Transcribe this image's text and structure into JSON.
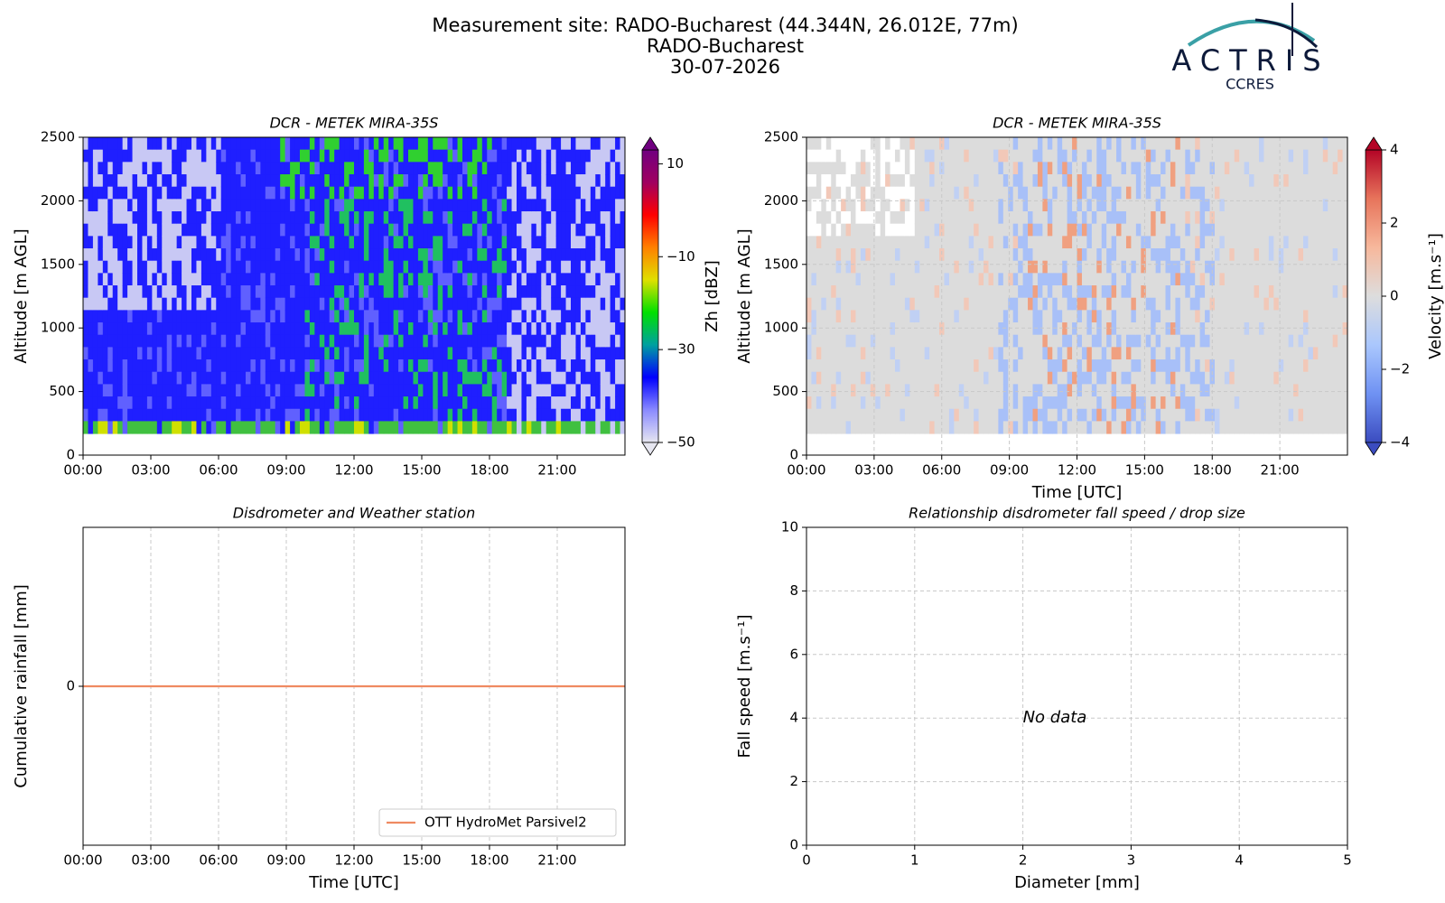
{
  "header": {
    "title": "Measurement site: RADO-Bucharest (44.344N, 26.012E, 77m)",
    "station": "RADO-Bucharest",
    "date": "30-07-2026",
    "logo": "ACTRIS",
    "logo_sub": "CCRES"
  },
  "chart_data": [
    {
      "type": "heatmap",
      "title": "DCR - METEK MIRA-35S",
      "ylabel": "Altitude [m AGL]",
      "xlim": [
        0,
        24
      ],
      "xticks": [
        {
          "value": 0,
          "label": "00:00"
        },
        {
          "value": 3,
          "label": "03:00"
        },
        {
          "value": 6,
          "label": "06:00"
        },
        {
          "value": 9,
          "label": "09:00"
        },
        {
          "value": 12,
          "label": "12:00"
        },
        {
          "value": 15,
          "label": "15:00"
        },
        {
          "value": 18,
          "label": "18:00"
        },
        {
          "value": 21,
          "label": "21:00"
        }
      ],
      "ylim": [
        0,
        2500
      ],
      "yticks": [
        0,
        500,
        1000,
        1500,
        2000,
        2500
      ],
      "grid": false,
      "colorbar": {
        "label": "Zh [dBZ]",
        "clim": [
          -50,
          13
        ],
        "ticks": [
          {
            "value": -50,
            "label": "−50"
          },
          {
            "value": -30,
            "label": "−30"
          },
          {
            "value": -10,
            "label": "−10"
          },
          10
        ],
        "colors": [
          "#e6e6f0",
          "#8a8aff",
          "#0000ff",
          "#00a0a0",
          "#00e000",
          "#e0e000",
          "#ff8000",
          "#ff0000",
          "#a00060",
          "#700080"
        ]
      }
    },
    {
      "type": "heatmap",
      "title": "DCR - METEK MIRA-35S",
      "ylabel": "Altitude [m AGL]",
      "xlabel": "Time [UTC]",
      "xlim": [
        0,
        24
      ],
      "xticks": [
        {
          "value": 0,
          "label": "00:00"
        },
        {
          "value": 3,
          "label": "03:00"
        },
        {
          "value": 6,
          "label": "06:00"
        },
        {
          "value": 9,
          "label": "09:00"
        },
        {
          "value": 12,
          "label": "12:00"
        },
        {
          "value": 15,
          "label": "15:00"
        },
        {
          "value": 18,
          "label": "18:00"
        },
        {
          "value": 21,
          "label": "21:00"
        }
      ],
      "ylim": [
        0,
        2500
      ],
      "yticks": [
        0,
        500,
        1000,
        1500,
        2000,
        2500
      ],
      "grid": true,
      "colorbar": {
        "label": "Velocity [m.s⁻¹]",
        "clim": [
          -4,
          4
        ],
        "ticks": [
          {
            "value": -4,
            "label": "−4"
          },
          {
            "value": -2,
            "label": "−2"
          },
          0,
          2,
          4
        ],
        "colors": [
          "#3b4cc0",
          "#6f92f3",
          "#aac7fd",
          "#dddddd",
          "#f7b89c",
          "#e7745b",
          "#b40426"
        ]
      }
    },
    {
      "type": "line",
      "title": "Disdrometer and Weather station",
      "ylabel": "Cumulative rainfall [mm]",
      "xlabel": "Time [UTC]",
      "xlim": [
        0,
        24
      ],
      "xticks": [
        {
          "value": 0,
          "label": "00:00"
        },
        {
          "value": 3,
          "label": "03:00"
        },
        {
          "value": 6,
          "label": "06:00"
        },
        {
          "value": 9,
          "label": "09:00"
        },
        {
          "value": 12,
          "label": "12:00"
        },
        {
          "value": 15,
          "label": "15:00"
        },
        {
          "value": 18,
          "label": "18:00"
        },
        {
          "value": 21,
          "label": "21:00"
        }
      ],
      "ylim": [
        -1,
        1
      ],
      "yticks": [
        0
      ],
      "grid": true,
      "legend": "lower right",
      "x": [
        0,
        24
      ],
      "series": [
        {
          "name": "OTT HydroMet Parsivel2",
          "color": "#ef8a62",
          "values": [
            0,
            0
          ]
        }
      ]
    },
    {
      "type": "scatter",
      "title": "Relationship disdrometer fall speed / drop size",
      "ylabel": "Fall speed [m.s⁻¹]",
      "xlabel": "Diameter [mm]",
      "xlim": [
        0,
        5
      ],
      "xticks": [
        0,
        1,
        2,
        3,
        4,
        5
      ],
      "ylim": [
        0,
        10
      ],
      "yticks": [
        0,
        2,
        4,
        6,
        8,
        10
      ],
      "grid": true,
      "annotation": "No data",
      "x": [],
      "values": []
    }
  ]
}
